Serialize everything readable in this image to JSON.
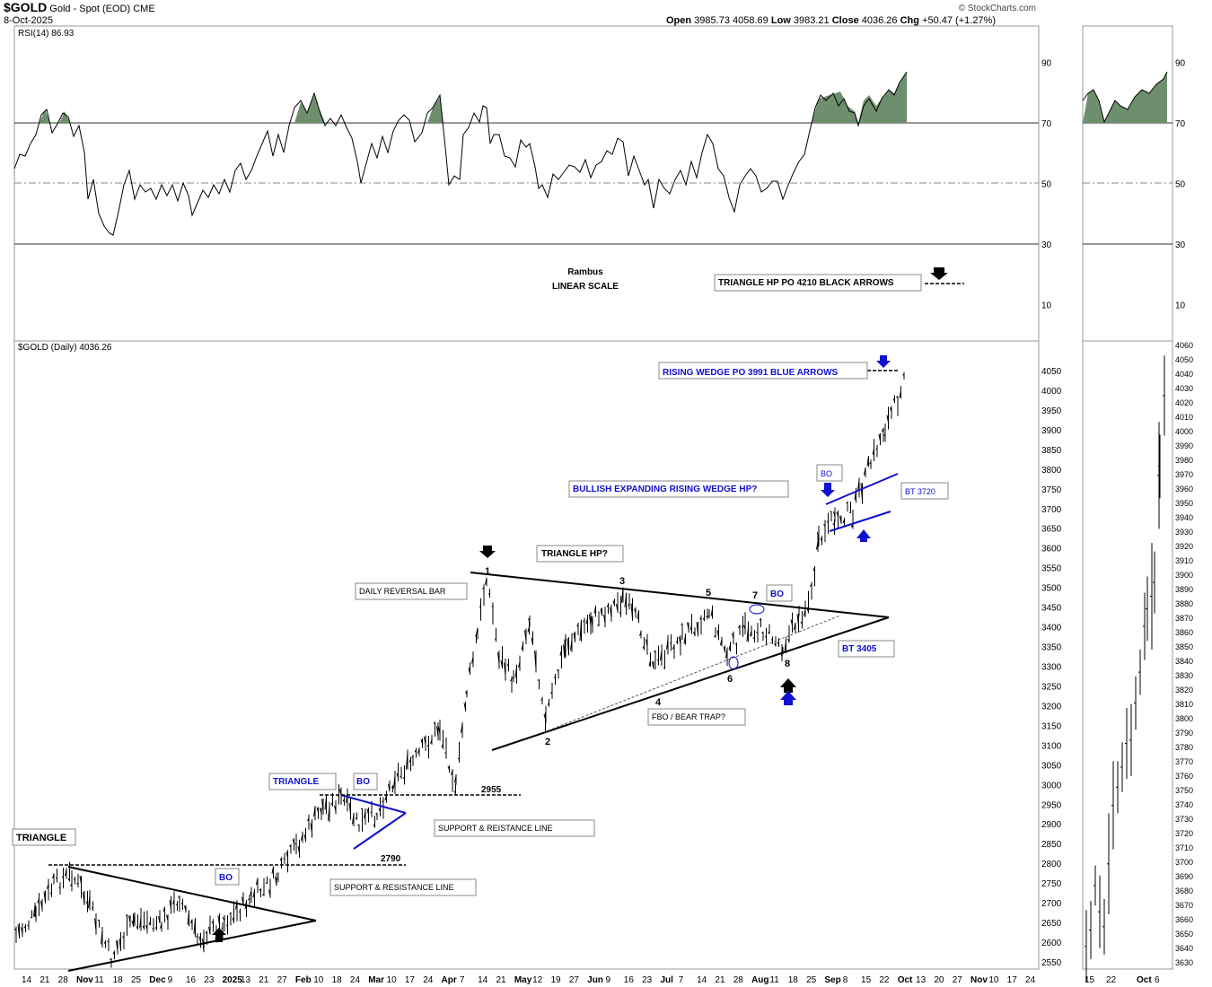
{
  "header": {
    "symbol": "$GOLD",
    "name": "Gold - Spot (EOD)",
    "exchange": "CME",
    "date": "8-Oct-2025",
    "open_label": "Open",
    "open": "3985.73",
    "high": "4058.69",
    "low_label": "Low",
    "low": "3983.21",
    "close_label": "Close",
    "close": "4036.26",
    "chg_label": "Chg",
    "chg": "+50.47 (+1.27%)",
    "watermark": "© StockCharts.com"
  },
  "rsi_panel": {
    "label": "RSI(14) 86.93",
    "axis_ticks": [
      "90",
      "70",
      "50",
      "30",
      "10"
    ],
    "notes": [
      "Rambus",
      "LINEAR SCALE"
    ],
    "callout": "TRIANGLE HP PO 4210 BLACK ARROWS"
  },
  "price_panel": {
    "label": "$GOLD (Daily) 4036.26",
    "y_ticks": [
      "4050",
      "4000",
      "3950",
      "3900",
      "3850",
      "3800",
      "3750",
      "3700",
      "3650",
      "3600",
      "3550",
      "3500",
      "3450",
      "3400",
      "3350",
      "3300",
      "3250",
      "3200",
      "3150",
      "3100",
      "3050",
      "3000",
      "2950",
      "2900",
      "2850",
      "2800",
      "2750",
      "2700",
      "2650",
      "2600",
      "2550"
    ],
    "inset_y_ticks": [
      "4060",
      "4050",
      "4040",
      "4030",
      "4020",
      "4010",
      "4000",
      "3990",
      "3980",
      "3970",
      "3960",
      "3950",
      "3940",
      "3930",
      "3920",
      "3910",
      "3900",
      "3890",
      "3880",
      "3870",
      "3860",
      "3850",
      "3840",
      "3830",
      "3820",
      "3810",
      "3800",
      "3790",
      "3780",
      "3770",
      "3760",
      "3750",
      "3740",
      "3730",
      "3720",
      "3710",
      "3700",
      "3690",
      "3680",
      "3670",
      "3660",
      "3650",
      "3640",
      "3630"
    ]
  },
  "x_axis": {
    "labels": [
      {
        "t": "14",
        "b": false
      },
      {
        "t": "21",
        "b": false
      },
      {
        "t": "28",
        "b": false
      },
      {
        "t": "Nov",
        "b": true
      },
      {
        "t": "11",
        "b": false
      },
      {
        "t": "18",
        "b": false
      },
      {
        "t": "25",
        "b": false
      },
      {
        "t": "Dec",
        "b": true
      },
      {
        "t": "9",
        "b": false
      },
      {
        "t": "16",
        "b": false
      },
      {
        "t": "23",
        "b": false
      },
      {
        "t": "2025",
        "b": true
      },
      {
        "t": "13",
        "b": false
      },
      {
        "t": "21",
        "b": false
      },
      {
        "t": "27",
        "b": false
      },
      {
        "t": "Feb",
        "b": true
      },
      {
        "t": "10",
        "b": false
      },
      {
        "t": "18",
        "b": false
      },
      {
        "t": "24",
        "b": false
      },
      {
        "t": "Mar",
        "b": true
      },
      {
        "t": "10",
        "b": false
      },
      {
        "t": "17",
        "b": false
      },
      {
        "t": "24",
        "b": false
      },
      {
        "t": "Apr",
        "b": true
      },
      {
        "t": "7",
        "b": false
      },
      {
        "t": "14",
        "b": false
      },
      {
        "t": "21",
        "b": false
      },
      {
        "t": "May",
        "b": true
      },
      {
        "t": "12",
        "b": false
      },
      {
        "t": "19",
        "b": false
      },
      {
        "t": "27",
        "b": false
      },
      {
        "t": "Jun",
        "b": true
      },
      {
        "t": "9",
        "b": false
      },
      {
        "t": "16",
        "b": false
      },
      {
        "t": "23",
        "b": false
      },
      {
        "t": "Jul",
        "b": true
      },
      {
        "t": "7",
        "b": false
      },
      {
        "t": "14",
        "b": false
      },
      {
        "t": "21",
        "b": false
      },
      {
        "t": "28",
        "b": false
      },
      {
        "t": "Aug",
        "b": true
      },
      {
        "t": "11",
        "b": false
      },
      {
        "t": "18",
        "b": false
      },
      {
        "t": "25",
        "b": false
      },
      {
        "t": "Sep",
        "b": true
      },
      {
        "t": "8",
        "b": false
      },
      {
        "t": "15",
        "b": false
      },
      {
        "t": "22",
        "b": false
      },
      {
        "t": "Oct",
        "b": true
      },
      {
        "t": "13",
        "b": false
      },
      {
        "t": "20",
        "b": false
      },
      {
        "t": "27",
        "b": false
      },
      {
        "t": "Nov",
        "b": true
      },
      {
        "t": "10",
        "b": false
      },
      {
        "t": "17",
        "b": false
      },
      {
        "t": "24",
        "b": false
      }
    ],
    "inset_labels": [
      {
        "t": "15",
        "b": false
      },
      {
        "t": "22",
        "b": false
      },
      {
        "t": "Oct",
        "b": true
      },
      {
        "t": "6",
        "b": false
      }
    ]
  },
  "annotations": {
    "triangle_left": "TRIANGLE",
    "bo1": "BO",
    "sr1": "SUPPORT & RESISTANCE LINE",
    "lvl_2790": "2790",
    "triangle_mid": "TRIANGLE",
    "bo2": "BO",
    "lvl_2955": "2955",
    "sr2": "SUPPORT & REISTANCE LINE",
    "daily_reversal": "DAILY REVERSAL BAR",
    "triangle_hp": "TRIANGLE HP?",
    "fbo": "FBO / BEAR TRAP?",
    "bo3": "BO",
    "bt3405": "BT 3405",
    "bullish_wedge": "BULLISH EXPANDING RISING WEDGE HP?",
    "bo4": "BO",
    "bt3720": "BT 3720",
    "rising_wedge_po": "RISING WEDGE PO 3991 BLUE ARROWS",
    "pt1": "1",
    "pt2": "2",
    "pt3": "3",
    "pt4": "4",
    "pt5": "5",
    "pt6": "6",
    "pt7": "7",
    "pt8": "8"
  },
  "colors": {
    "rsi_fill": "#6e8f6e",
    "blue": "#1010d0",
    "grid": "#888888"
  },
  "chart_data": [
    {
      "type": "line",
      "title": "RSI(14) 86.93",
      "ylim": [
        0,
        100
      ],
      "reference_lines": [
        30,
        50,
        70
      ],
      "x": [
        "Oct",
        "Nov",
        "Dec",
        "Jan",
        "Feb",
        "Mar",
        "Apr",
        "May",
        "Jun",
        "Jul",
        "Aug",
        "Sep",
        "Oct"
      ],
      "values": [
        55,
        40,
        50,
        45,
        75,
        55,
        70,
        50,
        60,
        55,
        50,
        75,
        86.93
      ]
    },
    {
      "type": "line",
      "title": "$GOLD (Daily) 4036.26",
      "ylim": [
        2530,
        4070
      ],
      "x": [
        "Oct",
        "Nov",
        "Dec",
        "Jan",
        "Feb",
        "Mar",
        "Apr",
        "May",
        "Jun",
        "Jul",
        "Aug",
        "Sep",
        "Oct"
      ],
      "values": [
        2700,
        2600,
        2650,
        2660,
        2850,
        2920,
        3100,
        3250,
        3380,
        3330,
        3350,
        3650,
        4036.26
      ],
      "trendlines": [
        {
          "name": "Triangle resistance",
          "from": [
            2790
          ],
          "to": [
            2650
          ]
        },
        {
          "name": "Triangle HP resistance",
          "from": [
            3500
          ],
          "to": [
            3390
          ]
        },
        {
          "name": "Triangle HP support",
          "from": [
            3070
          ],
          "to": [
            3390
          ]
        }
      ],
      "levels": [
        2790,
        2955
      ]
    }
  ]
}
